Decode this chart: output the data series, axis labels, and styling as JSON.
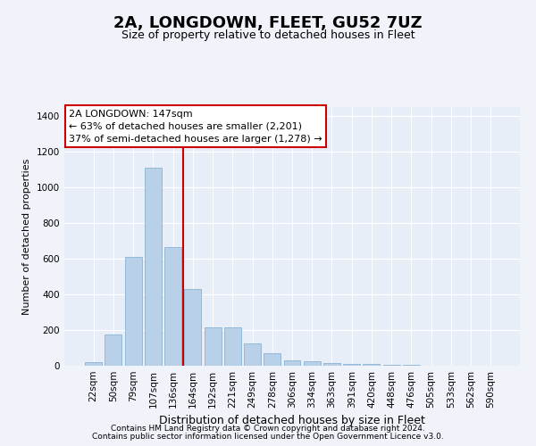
{
  "title": "2A, LONGDOWN, FLEET, GU52 7UZ",
  "subtitle": "Size of property relative to detached houses in Fleet",
  "xlabel": "Distribution of detached houses by size in Fleet",
  "ylabel": "Number of detached properties",
  "categories": [
    "22sqm",
    "50sqm",
    "79sqm",
    "107sqm",
    "136sqm",
    "164sqm",
    "192sqm",
    "221sqm",
    "249sqm",
    "278sqm",
    "306sqm",
    "334sqm",
    "363sqm",
    "391sqm",
    "420sqm",
    "448sqm",
    "476sqm",
    "505sqm",
    "533sqm",
    "562sqm",
    "590sqm"
  ],
  "values": [
    20,
    175,
    610,
    1110,
    665,
    430,
    215,
    215,
    125,
    70,
    30,
    25,
    15,
    10,
    8,
    5,
    4,
    2,
    2,
    2,
    2
  ],
  "bar_color": "#b8d0e8",
  "bar_edge_color": "#8ab4d4",
  "vline_color": "#cc0000",
  "vline_pos": 4.5,
  "annotation_text": "2A LONGDOWN: 147sqm\n← 63% of detached houses are smaller (2,201)\n37% of semi-detached houses are larger (1,278) →",
  "annotation_box_facecolor": "#ffffff",
  "annotation_box_edgecolor": "#cc0000",
  "ylim": [
    0,
    1450
  ],
  "yticks": [
    0,
    200,
    400,
    600,
    800,
    1000,
    1200,
    1400
  ],
  "footer1": "Contains HM Land Registry data © Crown copyright and database right 2024.",
  "footer2": "Contains public sector information licensed under the Open Government Licence v3.0.",
  "fig_facecolor": "#f0f4fa",
  "plot_facecolor": "#e8eef8",
  "grid_color": "#ffffff",
  "title_fontsize": 13,
  "subtitle_fontsize": 9,
  "xlabel_fontsize": 9,
  "ylabel_fontsize": 8,
  "tick_fontsize": 7.5,
  "footer_fontsize": 6.5
}
